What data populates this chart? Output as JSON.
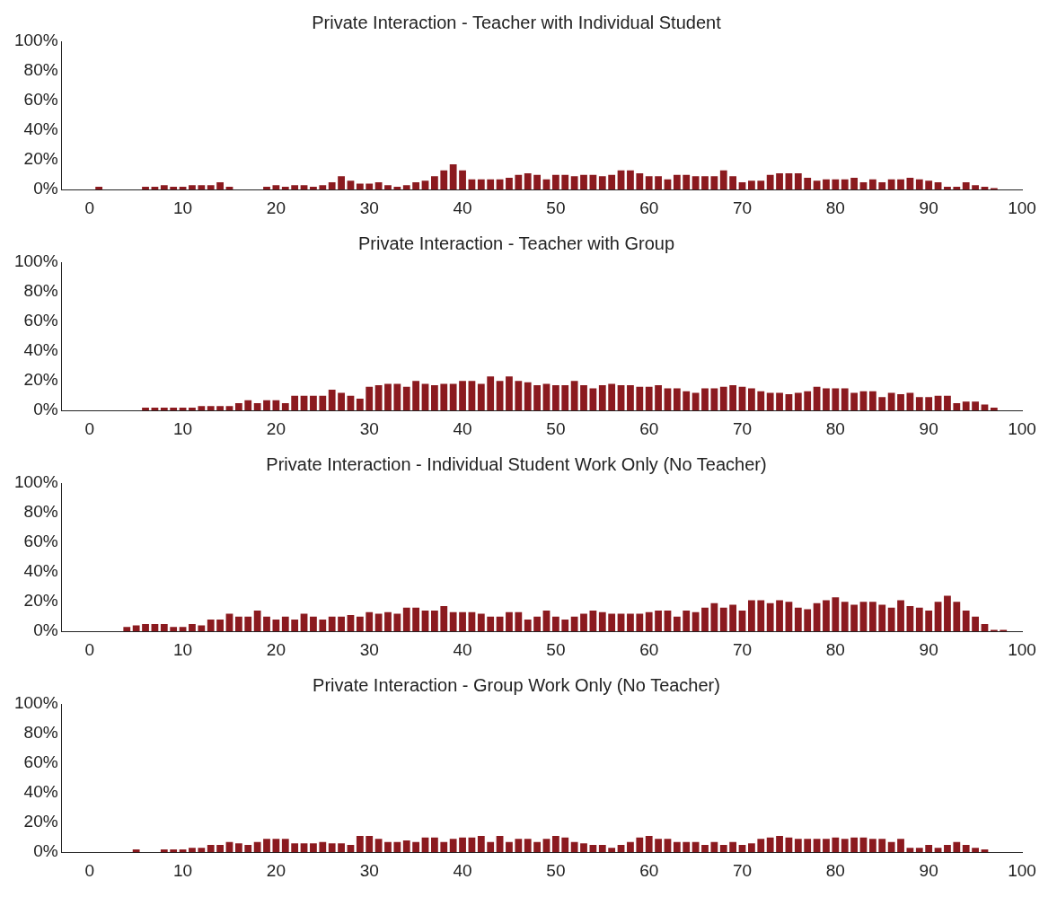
{
  "chart_data": [
    {
      "type": "bar",
      "title": "Private Interaction - Teacher with Individual Student",
      "x": [
        0,
        1,
        2,
        3,
        4,
        5,
        6,
        7,
        8,
        9,
        10,
        11,
        12,
        13,
        14,
        15,
        16,
        17,
        18,
        19,
        20,
        21,
        22,
        23,
        24,
        25,
        26,
        27,
        28,
        29,
        30,
        31,
        32,
        33,
        34,
        35,
        36,
        37,
        38,
        39,
        40,
        41,
        42,
        43,
        44,
        45,
        46,
        47,
        48,
        49,
        50,
        51,
        52,
        53,
        54,
        55,
        56,
        57,
        58,
        59,
        60,
        61,
        62,
        63,
        64,
        65,
        66,
        67,
        68,
        69,
        70,
        71,
        72,
        73,
        74,
        75,
        76,
        77,
        78,
        79,
        80,
        81,
        82,
        83,
        84,
        85,
        86,
        87,
        88,
        89,
        90,
        91,
        92,
        93,
        94,
        95,
        96,
        97
      ],
      "series": [
        {
          "color": "#8b1a1f",
          "values": [
            0,
            2,
            0,
            0,
            0,
            0,
            2,
            2,
            3,
            2,
            2,
            3,
            3,
            3,
            5,
            2,
            0,
            0,
            0,
            2,
            3,
            2,
            3,
            3,
            2,
            3,
            5,
            9,
            6,
            4,
            4,
            5,
            3,
            2,
            3,
            5,
            6,
            9,
            13,
            17,
            13,
            7,
            7,
            7,
            7,
            8,
            10,
            11,
            10,
            7,
            10,
            10,
            9,
            10,
            10,
            9,
            10,
            13,
            13,
            11,
            9,
            9,
            7,
            10,
            10,
            9,
            9,
            9,
            13,
            9,
            5,
            6,
            6,
            10,
            11,
            11,
            11,
            8,
            6,
            7,
            7,
            7,
            8,
            5,
            7,
            5,
            7,
            7,
            8,
            7,
            6,
            5,
            2,
            2,
            5,
            3,
            2,
            1
          ]
        }
      ],
      "xlim": [
        -3,
        100
      ],
      "xticks": [
        0,
        10,
        20,
        30,
        40,
        50,
        60,
        70,
        80,
        90,
        100
      ],
      "ylim": [
        0,
        100
      ],
      "yticks": [
        {
          "value": 0,
          "label": "0%"
        },
        {
          "value": 20,
          "label": "20%"
        },
        {
          "value": 40,
          "label": "40%"
        },
        {
          "value": 60,
          "label": "60%"
        },
        {
          "value": 80,
          "label": "80%"
        },
        {
          "value": 100,
          "label": "100%"
        }
      ],
      "grid": false,
      "legend": false
    },
    {
      "type": "bar",
      "title": "Private Interaction - Teacher with Group",
      "x": [
        0,
        1,
        2,
        3,
        4,
        5,
        6,
        7,
        8,
        9,
        10,
        11,
        12,
        13,
        14,
        15,
        16,
        17,
        18,
        19,
        20,
        21,
        22,
        23,
        24,
        25,
        26,
        27,
        28,
        29,
        30,
        31,
        32,
        33,
        34,
        35,
        36,
        37,
        38,
        39,
        40,
        41,
        42,
        43,
        44,
        45,
        46,
        47,
        48,
        49,
        50,
        51,
        52,
        53,
        54,
        55,
        56,
        57,
        58,
        59,
        60,
        61,
        62,
        63,
        64,
        65,
        66,
        67,
        68,
        69,
        70,
        71,
        72,
        73,
        74,
        75,
        76,
        77,
        78,
        79,
        80,
        81,
        82,
        83,
        84,
        85,
        86,
        87,
        88,
        89,
        90,
        91,
        92,
        93,
        94,
        95,
        96,
        97
      ],
      "series": [
        {
          "color": "#8b1a1f",
          "values": [
            0,
            0,
            0,
            0,
            0,
            0,
            2,
            2,
            2,
            2,
            2,
            2,
            3,
            3,
            3,
            3,
            5,
            7,
            5,
            7,
            7,
            5,
            10,
            10,
            10,
            10,
            14,
            12,
            10,
            8,
            16,
            17,
            18,
            18,
            16,
            20,
            18,
            17,
            18,
            18,
            20,
            20,
            18,
            23,
            20,
            23,
            20,
            19,
            17,
            18,
            17,
            17,
            20,
            17,
            15,
            17,
            18,
            17,
            17,
            16,
            16,
            17,
            15,
            15,
            13,
            12,
            15,
            15,
            16,
            17,
            16,
            15,
            13,
            12,
            12,
            11,
            12,
            13,
            16,
            15,
            15,
            15,
            12,
            13,
            13,
            9,
            12,
            11,
            12,
            9,
            9,
            10,
            10,
            5,
            6,
            6,
            4,
            2
          ]
        }
      ],
      "xlim": [
        -3,
        100
      ],
      "xticks": [
        0,
        10,
        20,
        30,
        40,
        50,
        60,
        70,
        80,
        90,
        100
      ],
      "ylim": [
        0,
        100
      ],
      "yticks": [
        {
          "value": 0,
          "label": "0%"
        },
        {
          "value": 20,
          "label": "20%"
        },
        {
          "value": 40,
          "label": "40%"
        },
        {
          "value": 60,
          "label": "60%"
        },
        {
          "value": 80,
          "label": "80%"
        },
        {
          "value": 100,
          "label": "100%"
        }
      ],
      "grid": false,
      "legend": false
    },
    {
      "type": "bar",
      "title": "Private Interaction - Individual Student Work Only (No Teacher)",
      "x": [
        0,
        1,
        2,
        3,
        4,
        5,
        6,
        7,
        8,
        9,
        10,
        11,
        12,
        13,
        14,
        15,
        16,
        17,
        18,
        19,
        20,
        21,
        22,
        23,
        24,
        25,
        26,
        27,
        28,
        29,
        30,
        31,
        32,
        33,
        34,
        35,
        36,
        37,
        38,
        39,
        40,
        41,
        42,
        43,
        44,
        45,
        46,
        47,
        48,
        49,
        50,
        51,
        52,
        53,
        54,
        55,
        56,
        57,
        58,
        59,
        60,
        61,
        62,
        63,
        64,
        65,
        66,
        67,
        68,
        69,
        70,
        71,
        72,
        73,
        74,
        75,
        76,
        77,
        78,
        79,
        80,
        81,
        82,
        83,
        84,
        85,
        86,
        87,
        88,
        89,
        90,
        91,
        92,
        93,
        94,
        95,
        96,
        97,
        98
      ],
      "series": [
        {
          "color": "#8b1a1f",
          "values": [
            0,
            0,
            0,
            0,
            3,
            4,
            5,
            5,
            5,
            3,
            3,
            5,
            4,
            8,
            8,
            12,
            10,
            10,
            14,
            10,
            8,
            10,
            8,
            12,
            10,
            8,
            10,
            10,
            11,
            10,
            13,
            12,
            13,
            12,
            16,
            16,
            14,
            14,
            17,
            13,
            13,
            13,
            12,
            10,
            10,
            13,
            13,
            8,
            10,
            14,
            10,
            8,
            10,
            12,
            14,
            13,
            12,
            12,
            12,
            12,
            13,
            14,
            14,
            10,
            14,
            13,
            16,
            19,
            16,
            18,
            14,
            21,
            21,
            19,
            21,
            20,
            16,
            15,
            19,
            21,
            23,
            20,
            18,
            20,
            20,
            18,
            16,
            21,
            17,
            16,
            14,
            20,
            24,
            20,
            14,
            10,
            5,
            1,
            1
          ]
        }
      ],
      "xlim": [
        -3,
        100
      ],
      "xticks": [
        0,
        10,
        20,
        30,
        40,
        50,
        60,
        70,
        80,
        90,
        100
      ],
      "ylim": [
        0,
        100
      ],
      "yticks": [
        {
          "value": 0,
          "label": "0%"
        },
        {
          "value": 20,
          "label": "20%"
        },
        {
          "value": 40,
          "label": "40%"
        },
        {
          "value": 60,
          "label": "60%"
        },
        {
          "value": 80,
          "label": "80%"
        },
        {
          "value": 100,
          "label": "100%"
        }
      ],
      "grid": false,
      "legend": false
    },
    {
      "type": "bar",
      "title": "Private Interaction - Group Work Only (No Teacher)",
      "x": [
        0,
        1,
        2,
        3,
        4,
        5,
        6,
        7,
        8,
        9,
        10,
        11,
        12,
        13,
        14,
        15,
        16,
        17,
        18,
        19,
        20,
        21,
        22,
        23,
        24,
        25,
        26,
        27,
        28,
        29,
        30,
        31,
        32,
        33,
        34,
        35,
        36,
        37,
        38,
        39,
        40,
        41,
        42,
        43,
        44,
        45,
        46,
        47,
        48,
        49,
        50,
        51,
        52,
        53,
        54,
        55,
        56,
        57,
        58,
        59,
        60,
        61,
        62,
        63,
        64,
        65,
        66,
        67,
        68,
        69,
        70,
        71,
        72,
        73,
        74,
        75,
        76,
        77,
        78,
        79,
        80,
        81,
        82,
        83,
        84,
        85,
        86,
        87,
        88,
        89,
        90,
        91,
        92,
        93,
        94,
        95,
        96
      ],
      "series": [
        {
          "color": "#8b1a1f",
          "values": [
            0,
            0,
            0,
            0,
            0,
            2,
            0,
            0,
            2,
            2,
            2,
            3,
            3,
            5,
            5,
            7,
            6,
            5,
            7,
            9,
            9,
            9,
            6,
            6,
            6,
            7,
            6,
            6,
            5,
            11,
            11,
            9,
            7,
            7,
            8,
            7,
            10,
            10,
            7,
            9,
            10,
            10,
            11,
            7,
            11,
            7,
            9,
            9,
            7,
            9,
            11,
            10,
            7,
            6,
            5,
            5,
            3,
            5,
            7,
            10,
            11,
            9,
            9,
            7,
            7,
            7,
            5,
            7,
            5,
            7,
            5,
            6,
            9,
            10,
            11,
            10,
            9,
            9,
            9,
            9,
            10,
            9,
            10,
            10,
            9,
            9,
            7,
            9,
            3,
            3,
            5,
            3,
            5,
            7,
            5,
            3,
            2
          ]
        }
      ],
      "xlim": [
        -3,
        100
      ],
      "xticks": [
        0,
        10,
        20,
        30,
        40,
        50,
        60,
        70,
        80,
        90,
        100
      ],
      "ylim": [
        0,
        100
      ],
      "yticks": [
        {
          "value": 0,
          "label": "0%"
        },
        {
          "value": 20,
          "label": "20%"
        },
        {
          "value": 40,
          "label": "40%"
        },
        {
          "value": 60,
          "label": "60%"
        },
        {
          "value": 80,
          "label": "80%"
        },
        {
          "value": 100,
          "label": "100%"
        }
      ],
      "grid": false,
      "legend": false
    }
  ]
}
